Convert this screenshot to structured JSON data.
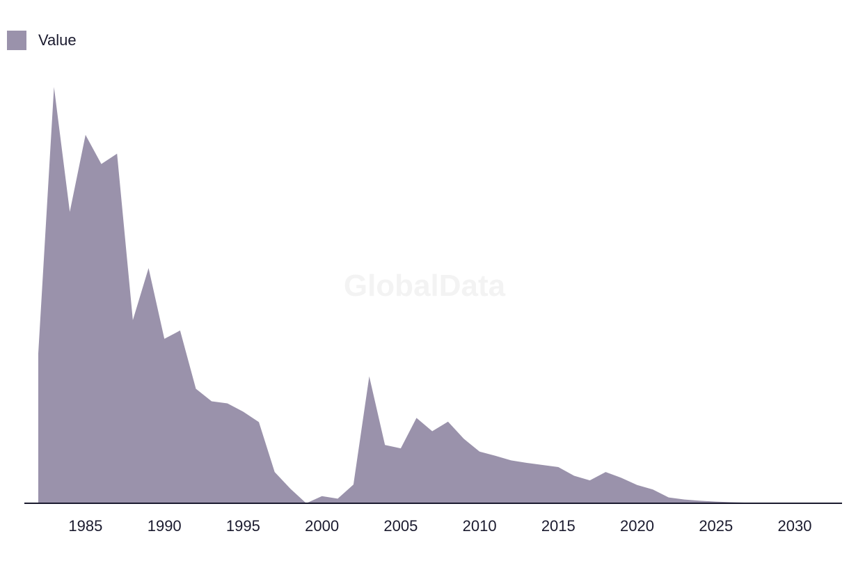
{
  "colors": {
    "area": "#9a92ab",
    "axis": "#1a1a2e",
    "text": "#1a1a2e"
  },
  "watermark": "GlobalData",
  "chart_data": {
    "type": "area",
    "title": "",
    "xlabel": "",
    "ylabel": "",
    "legend": {
      "position": "top-left",
      "entries": [
        "Value"
      ]
    },
    "grid": false,
    "xlim": [
      1982,
      2032
    ],
    "ylim": [
      0,
      100
    ],
    "xticks": [
      1985,
      1990,
      1995,
      2000,
      2005,
      2010,
      2015,
      2020,
      2025,
      2030
    ],
    "series": [
      {
        "name": "Value",
        "x": [
          1982,
          1983,
          1984,
          1985,
          1986,
          1987,
          1988,
          1989,
          1990,
          1991,
          1992,
          1993,
          1994,
          1995,
          1996,
          1997,
          1998,
          1999,
          2000,
          2001,
          2002,
          2003,
          2004,
          2005,
          2006,
          2007,
          2008,
          2009,
          2010,
          2011,
          2012,
          2013,
          2014,
          2015,
          2016,
          2017,
          2018,
          2019,
          2020,
          2021,
          2022,
          2023,
          2024,
          2025,
          2026,
          2027,
          2028,
          2029,
          2030,
          2031,
          2032
        ],
        "values": [
          36,
          100,
          70,
          88.5,
          81.5,
          84,
          44,
          56.5,
          39.5,
          41.5,
          27.5,
          24.5,
          24,
          22,
          19.5,
          7.5,
          3.5,
          0,
          1.7,
          1.1,
          4.5,
          30.5,
          14,
          13.2,
          20.5,
          17.3,
          19.6,
          15.5,
          12.4,
          11.4,
          10.3,
          9.7,
          9.2,
          8.7,
          6.6,
          5.5,
          7.5,
          6.1,
          4.4,
          3.3,
          1.4,
          0.9,
          0.6,
          0.4,
          0.25,
          0.15,
          0.1,
          0.05,
          0.03,
          0.02,
          0.01
        ]
      }
    ]
  }
}
